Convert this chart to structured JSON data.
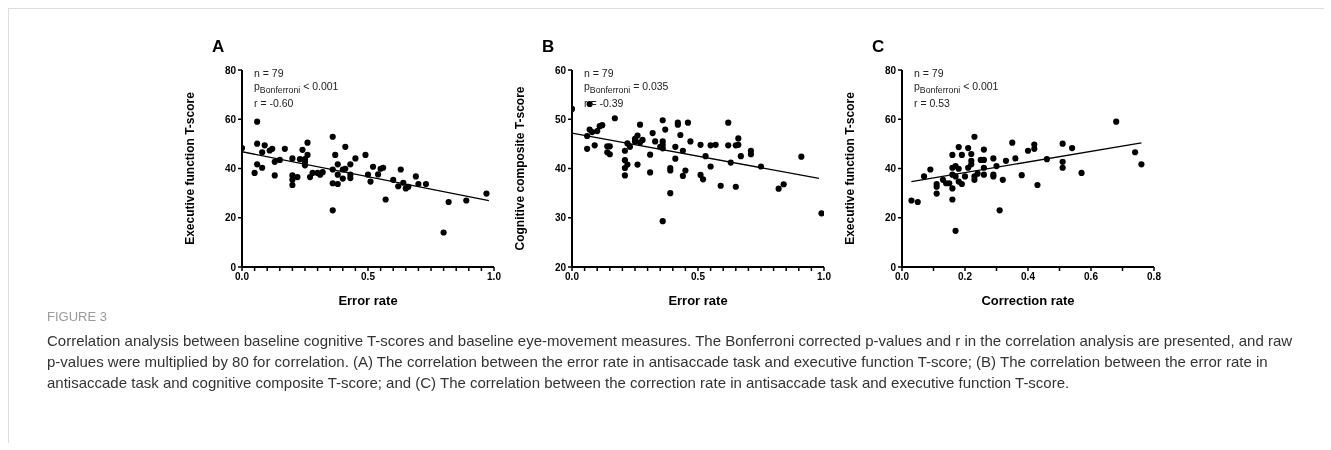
{
  "chart_data": [
    {
      "type": "scatter",
      "title": "A",
      "xlabel": "Error rate",
      "ylabel": "Executive function T-score",
      "xlim": [
        0,
        1
      ],
      "xticks": [
        {
          "value": 0,
          "label": "0.0"
        },
        {
          "value": 0.05,
          "label": null
        },
        {
          "value": 0.1,
          "label": null
        },
        {
          "value": 0.15,
          "label": null
        },
        {
          "value": 0.2,
          "label": null
        },
        {
          "value": 0.25,
          "label": null
        },
        {
          "value": 0.3,
          "label": null
        },
        {
          "value": 0.35,
          "label": null
        },
        {
          "value": 0.4,
          "label": null
        },
        {
          "value": 0.45,
          "label": null
        },
        {
          "value": 0.5,
          "label": "0.5"
        },
        {
          "value": 0.55,
          "label": null
        },
        {
          "value": 0.6,
          "label": null
        },
        {
          "value": 0.65,
          "label": null
        },
        {
          "value": 0.7,
          "label": null
        },
        {
          "value": 0.75,
          "label": null
        },
        {
          "value": 0.8,
          "label": null
        },
        {
          "value": 0.85,
          "label": null
        },
        {
          "value": 0.9,
          "label": null
        },
        {
          "value": 0.95,
          "label": null
        },
        {
          "value": 1,
          "label": "1.0"
        }
      ],
      "ylim": [
        0,
        80
      ],
      "yticks": [
        0,
        20,
        40,
        60,
        80
      ],
      "grid": false,
      "marker": "circle",
      "annotations": [
        "n = 79",
        "p$_{Bonferroni}$ < 0.001",
        "r = -0.60"
      ],
      "series": [
        {
          "color": "#000000",
          "x": [
            0.0,
            0.06,
            0.06,
            0.09,
            0.05,
            0.06,
            0.08,
            0.08,
            0.11,
            0.12,
            0.13,
            0.13,
            0.15,
            0.17,
            0.2,
            0.2,
            0.2,
            0.2,
            0.22,
            0.23,
            0.24,
            0.25,
            0.25,
            0.26,
            0.26,
            0.25,
            0.27,
            0.28,
            0.3,
            0.31,
            0.32,
            0.36,
            0.36,
            0.36,
            0.36,
            0.37,
            0.38,
            0.38,
            0.38,
            0.4,
            0.41,
            0.41,
            0.4,
            0.43,
            0.43,
            0.43,
            0.45,
            0.49,
            0.5,
            0.51,
            0.52,
            0.54,
            0.55,
            0.56,
            0.57,
            0.6,
            0.62,
            0.63,
            0.64,
            0.65,
            0.66,
            0.69,
            0.7,
            0.73,
            0.82,
            0.89,
            0.97,
            0.8
          ],
          "values": [
            48.3,
            59,
            50.1,
            49.4,
            38.2,
            41.7,
            40.3,
            46.6,
            47.3,
            48,
            37.2,
            42.7,
            43.5,
            48,
            44.1,
            37.2,
            33.3,
            35.4,
            36.5,
            43.8,
            47.6,
            43.8,
            41.3,
            45.5,
            50.5,
            42.7,
            36.5,
            38.2,
            38.2,
            37.5,
            38.5,
            52.9,
            39.6,
            34,
            23,
            45.5,
            33.7,
            41.7,
            37.5,
            39.6,
            39.9,
            48.8,
            35.9,
            41.7,
            37.5,
            36.1,
            44.1,
            45.5,
            37.5,
            34.7,
            40.7,
            37.6,
            39.9,
            40.3,
            27.4,
            35.4,
            32.8,
            39.6,
            34.2,
            31.9,
            32.6,
            36.8,
            33.7,
            33.7,
            26.4,
            27,
            29.8,
            14
          ]
        },
        {
          "type": "line",
          "marker": "none",
          "color": "#000000",
          "x": [
            0,
            0.98
          ],
          "values": [
            46.8,
            27
          ]
        }
      ]
    },
    {
      "type": "scatter",
      "title": "B",
      "xlabel": "Error rate",
      "ylabel": "Cognitive composite T-score",
      "xlim": [
        0,
        1
      ],
      "xticks": [
        {
          "value": 0,
          "label": "0.0"
        },
        {
          "value": 0.05,
          "label": null
        },
        {
          "value": 0.1,
          "label": null
        },
        {
          "value": 0.15,
          "label": null
        },
        {
          "value": 0.2,
          "label": null
        },
        {
          "value": 0.25,
          "label": null
        },
        {
          "value": 0.3,
          "label": null
        },
        {
          "value": 0.35,
          "label": null
        },
        {
          "value": 0.4,
          "label": null
        },
        {
          "value": 0.45,
          "label": null
        },
        {
          "value": 0.5,
          "label": "0.5"
        },
        {
          "value": 0.55,
          "label": null
        },
        {
          "value": 0.6,
          "label": null
        },
        {
          "value": 0.65,
          "label": null
        },
        {
          "value": 0.7,
          "label": null
        },
        {
          "value": 0.75,
          "label": null
        },
        {
          "value": 0.8,
          "label": null
        },
        {
          "value": 0.85,
          "label": null
        },
        {
          "value": 0.9,
          "label": null
        },
        {
          "value": 0.95,
          "label": null
        },
        {
          "value": 1,
          "label": "1.0"
        }
      ],
      "ylim": [
        20,
        60
      ],
      "yticks": [
        20,
        30,
        40,
        50,
        60
      ],
      "grid": false,
      "marker": "circle",
      "annotations": [
        "n = 79",
        "p$_{Bonferroni}$ = 0.035",
        "r = -0.39"
      ],
      "series": [
        {
          "color": "#000000",
          "x": [
            0.0,
            0.07,
            0.06,
            0.06,
            0.07,
            0.08,
            0.09,
            0.1,
            0.11,
            0.12,
            0.14,
            0.14,
            0.15,
            0.15,
            0.17,
            0.21,
            0.21,
            0.21,
            0.21,
            0.22,
            0.22,
            0.23,
            0.25,
            0.25,
            0.26,
            0.27,
            0.26,
            0.27,
            0.28,
            0.31,
            0.31,
            0.32,
            0.33,
            0.35,
            0.36,
            0.36,
            0.36,
            0.36,
            0.37,
            0.39,
            0.39,
            0.39,
            0.41,
            0.41,
            0.42,
            0.42,
            0.43,
            0.44,
            0.44,
            0.45,
            0.46,
            0.47,
            0.51,
            0.51,
            0.52,
            0.53,
            0.55,
            0.55,
            0.57,
            0.59,
            0.62,
            0.62,
            0.63,
            0.65,
            0.65,
            0.66,
            0.66,
            0.67,
            0.71,
            0.71,
            0.75,
            0.82,
            0.84,
            0.91,
            0.99,
            0.36
          ],
          "values": [
            52.1,
            53.1,
            44,
            46.6,
            47.9,
            47.4,
            44.7,
            47.6,
            48.6,
            48.8,
            44.5,
            43.3,
            44.5,
            42.9,
            50.2,
            43.6,
            41.7,
            40.1,
            38.6,
            40.8,
            45.1,
            44.4,
            46,
            45.5,
            46.7,
            48.9,
            40.8,
            45.3,
            45.8,
            42.8,
            39.2,
            47.2,
            45.5,
            44.4,
            49.8,
            45.5,
            44.8,
            44.1,
            47.9,
            40.1,
            39.6,
            35,
            44.4,
            42,
            49.3,
            48.9,
            46.8,
            43.6,
            38.5,
            39.6,
            49.3,
            45.5,
            44.8,
            38.7,
            37.8,
            42.5,
            40.4,
            44.7,
            44.8,
            36.5,
            49.3,
            44.7,
            41.2,
            36.3,
            44.7,
            46.1,
            44.8,
            42.5,
            42.9,
            43.6,
            40.4,
            35.9,
            36.8,
            42.4,
            30.9,
            29.3
          ]
        },
        {
          "type": "line",
          "marker": "none",
          "color": "#000000",
          "x": [
            0,
            0.98
          ],
          "values": [
            47.2,
            38
          ]
        }
      ]
    },
    {
      "type": "scatter",
      "title": "C",
      "xlabel": "Correction rate",
      "ylabel": "Executive function T-score",
      "xlim": [
        0,
        0.8
      ],
      "xticks": [
        {
          "value": 0,
          "label": "0.0"
        },
        {
          "value": 0.1,
          "label": null
        },
        {
          "value": 0.2,
          "label": "0.2"
        },
        {
          "value": 0.3,
          "label": null
        },
        {
          "value": 0.4,
          "label": "0.4"
        },
        {
          "value": 0.5,
          "label": null
        },
        {
          "value": 0.6,
          "label": "0.6"
        },
        {
          "value": 0.7,
          "label": null
        },
        {
          "value": 0.8,
          "label": "0.8"
        }
      ],
      "ylim": [
        0,
        80
      ],
      "yticks": [
        0,
        20,
        40,
        60,
        80
      ],
      "grid": false,
      "marker": "circle",
      "annotations": [
        "n = 79",
        "p$_{Bonferroni}$ < 0.001",
        "r = 0.53",
        "FIGURE 3",
        "Correlation analysis between baseline cognitive T-scores and baseline eye-movement measures. The Bonferroni corrected p-values and r in the correlation analysis are presented, and raw p-values were multiplied by 80 for correlation. (A) The correlation between the error rate in antisaccade task and executive function T-score; (B) The correlation between the error rate in antisaccade task and cognitive composite T-score; and (C) The correlation between the correction rate in antisaccade task and executive function T-score."
      ],
      "series": [
        {
          "color": "#000000",
          "x": [
            0.03,
            0.05,
            0.07,
            0.09,
            0.11,
            0.11,
            0.11,
            0.13,
            0.14,
            0.15,
            0.16,
            0.16,
            0.16,
            0.16,
            0.16,
            0.17,
            0.17,
            0.18,
            0.18,
            0.18,
            0.19,
            0.19,
            0.2,
            0.21,
            0.21,
            0.22,
            0.22,
            0.22,
            0.23,
            0.23,
            0.23,
            0.24,
            0.25,
            0.26,
            0.26,
            0.26,
            0.26,
            0.29,
            0.29,
            0.29,
            0.3,
            0.31,
            0.32,
            0.33,
            0.35,
            0.36,
            0.38,
            0.4,
            0.42,
            0.42,
            0.43,
            0.46,
            0.51,
            0.51,
            0.51,
            0.54,
            0.57,
            0.68,
            0.74,
            0.76,
            0.17
          ],
          "values": [
            27,
            26.4,
            36.8,
            39.6,
            33.7,
            32.6,
            29.8,
            35.4,
            34,
            34,
            45.5,
            40.3,
            31.9,
            27.4,
            37.5,
            41,
            36.8,
            48.7,
            39.9,
            34.7,
            45.5,
            33.7,
            36.8,
            48.3,
            40.3,
            45.9,
            43.1,
            41.7,
            52.9,
            35.4,
            36.8,
            37.9,
            43.5,
            43.5,
            47.7,
            40.3,
            37.5,
            44.1,
            37.5,
            36.8,
            41,
            23,
            35.4,
            43.1,
            50.5,
            44.1,
            37.3,
            47.2,
            49.7,
            48,
            33.3,
            43.8,
            50.1,
            42.7,
            40.3,
            48.3,
            38.2,
            59,
            46.6,
            41.7,
            14.7
          ]
        },
        {
          "type": "line",
          "marker": "none",
          "color": "#000000",
          "x": [
            0.03,
            0.76
          ],
          "values": [
            34.7,
            50.4
          ]
        }
      ]
    }
  ]
}
